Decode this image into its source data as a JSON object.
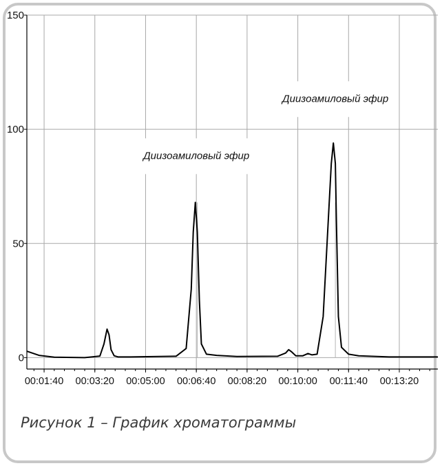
{
  "chart_data": {
    "type": "line",
    "x_unit": "hh:mm:ss",
    "x_ticks": [
      "00:01:40",
      "00:03:20",
      "00:05:00",
      "00:06:40",
      "00:08:20",
      "00:10:00",
      "00:11:40",
      "00:13:20"
    ],
    "y_ticks": [
      "0",
      "50",
      "100",
      "150"
    ],
    "xlim": [
      "00:01:06",
      "00:14:36"
    ],
    "ylim": [
      -5,
      150
    ],
    "grid": true,
    "series": [
      {
        "x": [
          "00:01:06",
          "00:01:30",
          "00:02:00",
          "00:03:00",
          "00:03:30",
          "00:03:38",
          "00:03:44",
          "00:03:48",
          "00:03:52",
          "00:03:58",
          "00:04:06",
          "00:04:30",
          "00:06:00",
          "00:06:20",
          "00:06:30",
          "00:06:34",
          "00:06:38",
          "00:06:42",
          "00:06:46",
          "00:06:50",
          "00:07:00",
          "00:07:20",
          "00:08:00",
          "00:09:20",
          "00:09:36",
          "00:09:42",
          "00:09:48",
          "00:09:56",
          "00:10:10",
          "00:10:20",
          "00:10:28",
          "00:10:38",
          "00:10:50",
          "00:11:00",
          "00:11:06",
          "00:11:10",
          "00:11:14",
          "00:11:16",
          "00:11:20",
          "00:11:26",
          "00:11:40",
          "00:12:00",
          "00:13:00",
          "00:14:36"
        ],
        "y": [
          2.8,
          1.0,
          0.2,
          0.0,
          0.7,
          6.0,
          12.5,
          10.0,
          3.5,
          0.8,
          0.3,
          0.3,
          0.6,
          4.0,
          30.0,
          55.0,
          68.0,
          55.0,
          25.0,
          6.0,
          1.5,
          1.0,
          0.5,
          0.6,
          2.0,
          3.5,
          2.5,
          0.8,
          0.8,
          1.8,
          1.2,
          1.5,
          18.0,
          60.0,
          85.0,
          94.0,
          85.0,
          60.0,
          18.0,
          4.5,
          1.5,
          0.8,
          0.3,
          0.3
        ]
      }
    ],
    "annotations": [
      {
        "text": "Диизоамиловый эфир",
        "x": "00:06:40",
        "y": 87
      },
      {
        "text": "Диизоамиловый эфир",
        "x": "00:11:14",
        "y": 112
      }
    ],
    "peak_markers": [
      "00:06:42",
      "00:11:14"
    ]
  },
  "caption": "Рисунок 1 – График хроматограммы",
  "colors": {
    "line": "#000000",
    "grid": "#a8a8a8",
    "frame": "#c8c8c8"
  }
}
